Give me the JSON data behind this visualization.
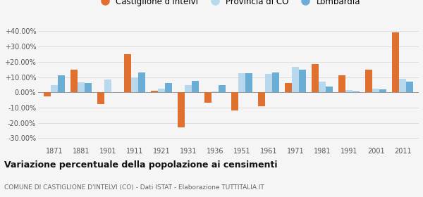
{
  "years": [
    1871,
    1881,
    1901,
    1911,
    1921,
    1931,
    1936,
    1951,
    1961,
    1971,
    1981,
    1991,
    2001,
    2011
  ],
  "castiglione": [
    -2.5,
    15.0,
    -7.5,
    25.0,
    1.0,
    -23.0,
    -7.0,
    -12.0,
    -9.0,
    6.0,
    18.5,
    11.0,
    15.0,
    39.5
  ],
  "provincia_co": [
    4.5,
    6.5,
    8.5,
    10.0,
    2.5,
    4.5,
    0.5,
    12.5,
    12.0,
    16.5,
    7.0,
    1.5,
    2.5,
    9.0
  ],
  "lombardia": [
    11.0,
    6.0,
    0.0,
    13.0,
    6.0,
    7.5,
    4.5,
    12.5,
    13.0,
    15.0,
    4.0,
    0.5,
    2.0,
    7.0
  ],
  "color_castiglione": "#e07030",
  "color_provincia": "#b8d8ee",
  "color_lombardia": "#6aaed6",
  "ylim": [
    -35,
    45
  ],
  "yticks": [
    -30,
    -20,
    -10,
    0,
    10,
    20,
    30,
    40
  ],
  "title": "Variazione percentuale della popolazione ai censimenti",
  "subtitle": "COMUNE DI CASTIGLIONE D'INTELVI (CO) - Dati ISTAT - Elaborazione TUTTITALIA.IT",
  "legend_labels": [
    "Castiglione d'Intelvi",
    "Provincia di CO",
    "Lombardia"
  ],
  "bg_color": "#f5f5f5",
  "grid_color": "#dddddd"
}
